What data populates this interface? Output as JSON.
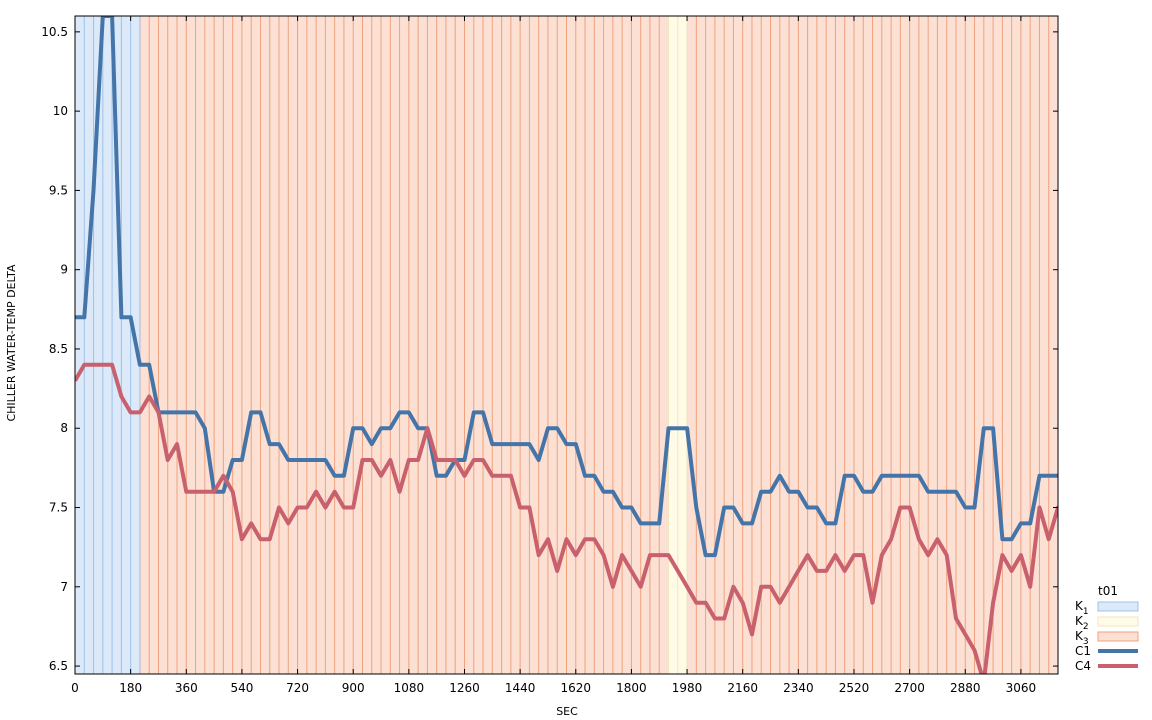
{
  "chart_data": {
    "type": "line",
    "xlabel": "SEC",
    "ylabel": "CHILLER WATER-TEMP DELTA",
    "xlim": [
      0,
      3180
    ],
    "ylim": [
      6.45,
      10.6
    ],
    "x_ticks": [
      0,
      180,
      360,
      540,
      720,
      900,
      1080,
      1260,
      1440,
      1620,
      1800,
      1980,
      2160,
      2340,
      2520,
      2700,
      2880,
      3060
    ],
    "y_ticks": [
      6.5,
      7,
      7.5,
      8,
      8.5,
      9,
      9.5,
      10,
      10.5
    ],
    "x_step": 30,
    "grid": false,
    "legend": {
      "title": "t01",
      "position": "bottom-right outside plot"
    },
    "regions": [
      {
        "label": "K",
        "sub": "1",
        "start": 0,
        "end": 210,
        "fill": "#dbe9f8",
        "stroke": "#9ec2ea"
      },
      {
        "label": "K",
        "sub": "2",
        "start": 1920,
        "end": 1980,
        "fill": "#fffbe6",
        "stroke": "#f1e6bf"
      },
      {
        "label": "K",
        "sub": "3",
        "start": 210,
        "end": 3180,
        "fill": "#fbe0d3",
        "stroke": "#f0a27d"
      }
    ],
    "series": [
      {
        "name": "C1",
        "color": "#4575a8",
        "values": [
          8.7,
          8.7,
          9.5,
          10.6,
          10.6,
          8.7,
          8.7,
          8.4,
          8.4,
          8.1,
          8.1,
          8.1,
          8.1,
          8.1,
          8.0,
          7.6,
          7.6,
          7.8,
          7.8,
          8.1,
          8.1,
          7.9,
          7.9,
          7.8,
          7.8,
          7.8,
          7.8,
          7.8,
          7.7,
          7.7,
          8.0,
          8.0,
          7.9,
          8.0,
          8.0,
          8.1,
          8.1,
          8.0,
          8.0,
          7.7,
          7.7,
          7.8,
          7.8,
          8.1,
          8.1,
          7.9,
          7.9,
          7.9,
          7.9,
          7.9,
          7.8,
          8.0,
          8.0,
          7.9,
          7.9,
          7.7,
          7.7,
          7.6,
          7.6,
          7.5,
          7.5,
          7.4,
          7.4,
          7.4,
          8.0,
          8.0,
          8.0,
          7.5,
          7.2,
          7.2,
          7.5,
          7.5,
          7.4,
          7.4,
          7.6,
          7.6,
          7.7,
          7.6,
          7.6,
          7.5,
          7.5,
          7.4,
          7.4,
          7.7,
          7.7,
          7.6,
          7.6,
          7.7,
          7.7,
          7.7,
          7.7,
          7.7,
          7.6,
          7.6,
          7.6,
          7.6,
          7.5,
          7.5,
          8.0,
          8.0,
          7.3,
          7.3,
          7.4,
          7.4,
          7.7,
          7.7,
          7.7,
          7.7,
          7.7,
          7.7,
          7.7
        ]
      },
      {
        "name": "C4",
        "color": "#c8606e",
        "values": [
          8.3,
          8.4,
          8.4,
          8.4,
          8.4,
          8.2,
          8.1,
          8.1,
          8.2,
          8.1,
          7.8,
          7.9,
          7.6,
          7.6,
          7.6,
          7.6,
          7.7,
          7.6,
          7.3,
          7.4,
          7.3,
          7.3,
          7.5,
          7.4,
          7.5,
          7.5,
          7.6,
          7.5,
          7.6,
          7.5,
          7.5,
          7.8,
          7.8,
          7.7,
          7.8,
          7.6,
          7.8,
          7.8,
          8.0,
          7.8,
          7.8,
          7.8,
          7.7,
          7.8,
          7.8,
          7.7,
          7.7,
          7.7,
          7.5,
          7.5,
          7.2,
          7.3,
          7.1,
          7.3,
          7.2,
          7.3,
          7.3,
          7.2,
          7.0,
          7.2,
          7.1,
          7.0,
          7.2,
          7.2,
          7.2,
          7.1,
          7.0,
          6.9,
          6.9,
          6.8,
          6.8,
          7.0,
          6.9,
          6.7,
          7.0,
          7.0,
          6.9,
          7.0,
          7.1,
          7.2,
          7.1,
          7.1,
          7.2,
          7.1,
          7.2,
          7.2,
          6.9,
          7.2,
          7.3,
          7.5,
          7.5,
          7.3,
          7.2,
          7.3,
          7.2,
          6.8,
          6.7,
          6.6,
          6.4,
          6.9,
          7.2,
          7.1,
          7.2,
          7.0,
          7.5,
          7.3,
          7.5,
          7.5
        ]
      }
    ]
  }
}
